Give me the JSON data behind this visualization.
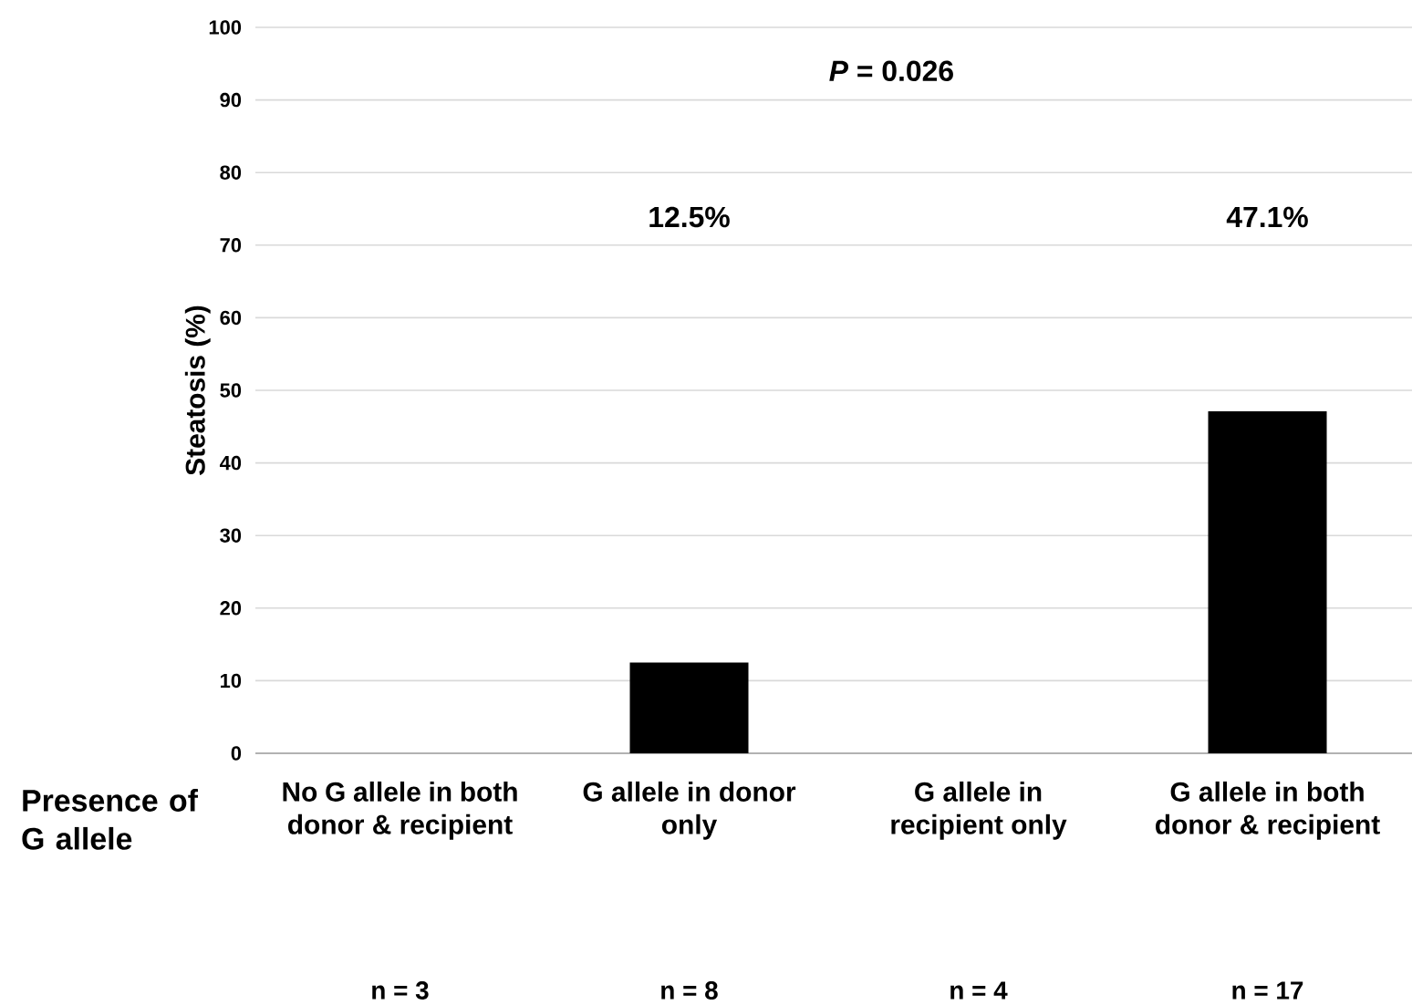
{
  "chart_data": {
    "type": "bar",
    "ylabel": "Steatosis (%)",
    "xlabel": "Presence of G allele",
    "categories": [
      "No G allele in both donor & recipient",
      "G allele in donor only",
      "G allele in recipient only",
      "G allele in both donor & recipient"
    ],
    "values": [
      0,
      12.5,
      0,
      47.1
    ],
    "color": "#000000",
    "ylim": [
      0,
      100
    ],
    "yticks": [
      0,
      10,
      20,
      30,
      40,
      50,
      60,
      70,
      80,
      90,
      100
    ],
    "grid": "y",
    "annotations": [
      "*P* = 0.026",
      "n = 3",
      "n = 8",
      "n = 4",
      "n = 17",
      "12.5%",
      "47.1%"
    ]
  }
}
